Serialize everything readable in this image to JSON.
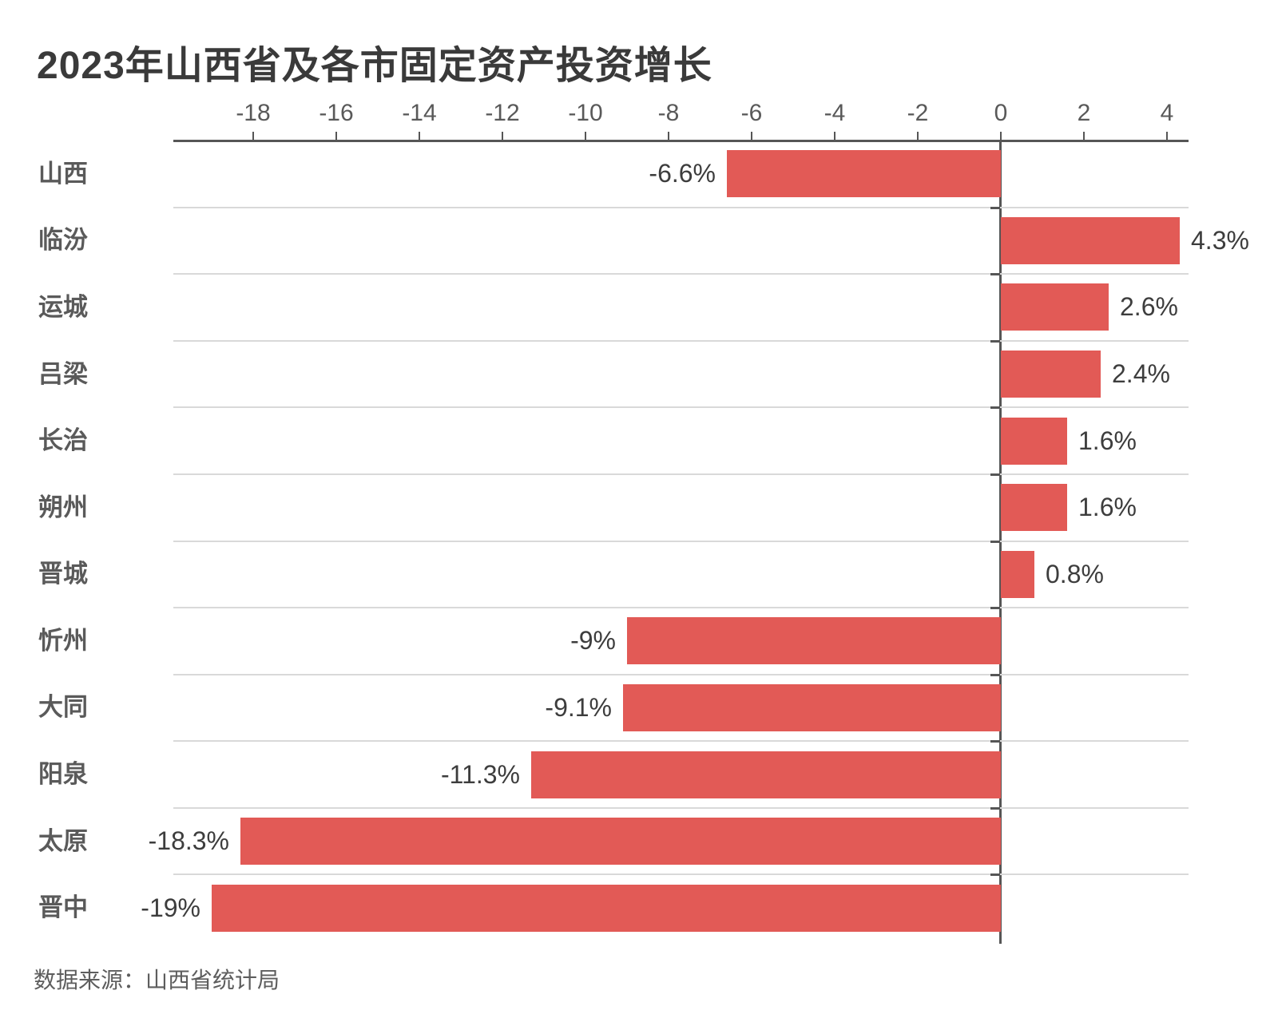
{
  "page": {
    "title": "2023年山西省及各市固定资产投资增长",
    "source": "数据来源：山西省统计局"
  },
  "colors": {
    "background": "#ffffff",
    "bar": "#e25a56",
    "axis": "#565656",
    "separator": "#d9d9d9",
    "title_text": "#3a3a3a",
    "category_text": "#5a5a5a",
    "value_text": "#3d3d3d",
    "tick_text": "#595959",
    "source_text": "#5d5d5d"
  },
  "chart_data": {
    "type": "bar",
    "orientation": "horizontal",
    "title": "2023年山西省及各市固定资产投资增长",
    "unit": "%",
    "categories": [
      "山西",
      "临汾",
      "运城",
      "吕梁",
      "长治",
      "朔州",
      "晋城",
      "忻州",
      "大同",
      "阳泉",
      "太原",
      "晋中"
    ],
    "values": [
      -6.6,
      4.3,
      2.6,
      2.4,
      1.6,
      1.6,
      0.8,
      -9,
      -9.1,
      -11.3,
      -18.3,
      -19
    ],
    "value_labels": [
      "-6.6%",
      "4.3%",
      "2.6%",
      "2.4%",
      "1.6%",
      "1.6%",
      "0.8%",
      "-9%",
      "-9.1%",
      "-11.3%",
      "-18.3%",
      "-19%"
    ],
    "x_ticks": [
      -18,
      -16,
      -14,
      -12,
      -10,
      -8,
      -6,
      -4,
      -2,
      0,
      2,
      4
    ],
    "x_tick_labels": [
      "-18",
      "-16",
      "-14",
      "-12",
      "-10",
      "-8",
      "-6",
      "-4",
      "-2",
      "0",
      "2",
      "4"
    ],
    "xlim": [
      -19.9,
      4.5
    ],
    "grid": "row-separators",
    "legend": "none",
    "xlabel": "",
    "ylabel": "",
    "source": "数据来源：山西省统计局"
  }
}
